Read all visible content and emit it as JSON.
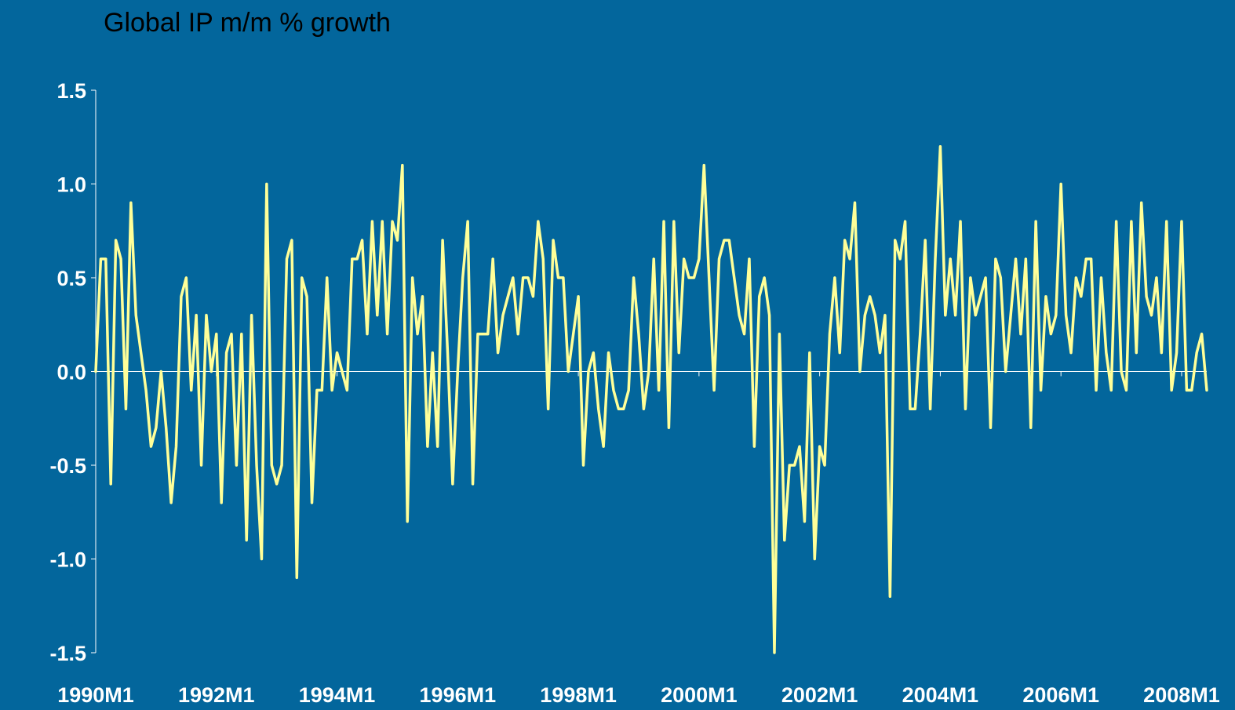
{
  "chart_data": {
    "type": "line",
    "title": "Global IP m/m % growth",
    "categories": [
      "1990M1",
      null,
      null,
      null,
      null,
      null,
      null,
      null,
      null,
      null,
      null,
      null,
      null,
      null,
      null,
      null,
      null,
      null,
      null,
      null,
      null,
      null,
      null,
      null,
      "1992M1",
      null,
      null,
      null,
      null,
      null,
      null,
      null,
      null,
      null,
      null,
      null,
      null,
      null,
      null,
      null,
      null,
      null,
      null,
      null,
      null,
      null,
      null,
      null,
      "1994M1",
      null,
      null,
      null,
      null,
      null,
      null,
      null,
      null,
      null,
      null,
      null,
      null,
      null,
      null,
      null,
      null,
      null,
      null,
      null,
      null,
      null,
      null,
      null,
      "1996M1",
      null,
      null,
      null,
      null,
      null,
      null,
      null,
      null,
      null,
      null,
      null,
      null,
      null,
      null,
      null,
      null,
      null,
      null,
      null,
      null,
      null,
      null,
      null,
      "1998M1",
      null,
      null,
      null,
      null,
      null,
      null,
      null,
      null,
      null,
      null,
      null,
      null,
      null,
      null,
      null,
      null,
      null,
      null,
      null,
      null,
      null,
      null,
      null,
      "2000M1",
      null,
      null,
      null,
      null,
      null,
      null,
      null,
      null,
      null,
      null,
      null,
      null,
      null,
      null,
      null,
      null,
      null,
      null,
      null,
      null,
      null,
      null,
      null,
      "2002M1",
      null,
      null,
      null,
      null,
      null,
      null,
      null,
      null,
      null,
      null,
      null,
      null,
      null,
      null,
      null,
      null,
      null,
      null,
      null,
      null,
      null,
      null,
      null,
      "2004M1",
      null,
      null,
      null,
      null,
      null,
      null,
      null,
      null,
      null,
      null,
      null,
      null,
      null,
      null,
      null,
      null,
      null,
      null,
      null,
      null,
      null,
      null,
      null,
      "2006M1",
      null,
      null,
      null,
      null,
      null,
      null,
      null,
      null,
      null,
      null,
      null,
      null,
      null,
      null,
      null,
      null,
      null,
      null,
      null,
      null,
      null,
      null,
      null,
      "2008M1",
      null,
      null,
      null,
      null,
      null
    ],
    "series": [
      {
        "color": "#ffff99",
        "values": [
          0.0,
          0.6,
          0.6,
          -0.6,
          0.7,
          0.6,
          -0.2,
          0.9,
          0.3,
          0.1,
          -0.1,
          -0.4,
          -0.3,
          0.0,
          -0.3,
          -0.7,
          -0.4,
          0.4,
          0.5,
          -0.1,
          0.3,
          -0.5,
          0.3,
          0.0,
          0.2,
          -0.7,
          0.1,
          0.2,
          -0.5,
          0.2,
          -0.9,
          0.3,
          -0.5,
          -1.0,
          1.0,
          -0.5,
          -0.6,
          -0.5,
          0.6,
          0.7,
          -1.1,
          0.5,
          0.4,
          -0.7,
          -0.1,
          -0.1,
          0.5,
          -0.1,
          0.1,
          0.0,
          -0.1,
          0.6,
          0.6,
          0.7,
          0.2,
          0.8,
          0.3,
          0.8,
          0.2,
          0.8,
          0.7,
          1.1,
          -0.8,
          0.5,
          0.2,
          0.4,
          -0.4,
          0.1,
          -0.4,
          0.7,
          0.1,
          -0.6,
          0.0,
          0.5,
          0.8,
          -0.6,
          0.2,
          0.2,
          0.2,
          0.6,
          0.1,
          0.3,
          0.4,
          0.5,
          0.2,
          0.5,
          0.5,
          0.4,
          0.8,
          0.6,
          -0.2,
          0.7,
          0.5,
          0.5,
          0.0,
          0.2,
          0.4,
          -0.5,
          0.0,
          0.1,
          -0.2,
          -0.4,
          0.1,
          -0.1,
          -0.2,
          -0.2,
          -0.1,
          0.5,
          0.2,
          -0.2,
          0.0,
          0.6,
          -0.1,
          0.8,
          -0.3,
          0.8,
          0.1,
          0.6,
          0.5,
          0.5,
          0.6,
          1.1,
          0.5,
          -0.1,
          0.6,
          0.7,
          0.7,
          0.5,
          0.3,
          0.2,
          0.6,
          -0.4,
          0.4,
          0.5,
          0.3,
          -1.5,
          0.2,
          -0.9,
          -0.5,
          -0.5,
          -0.4,
          -0.8,
          0.1,
          -1.0,
          -0.4,
          -0.5,
          0.2,
          0.5,
          0.1,
          0.7,
          0.6,
          0.9,
          0.0,
          0.3,
          0.4,
          0.3,
          0.1,
          0.3,
          -1.2,
          0.7,
          0.6,
          0.8,
          -0.2,
          -0.2,
          0.2,
          0.7,
          -0.2,
          0.6,
          1.2,
          0.3,
          0.6,
          0.3,
          0.8,
          -0.2,
          0.5,
          0.3,
          0.4,
          0.5,
          -0.3,
          0.6,
          0.5,
          0.0,
          0.3,
          0.6,
          0.2,
          0.6,
          -0.3,
          0.8,
          -0.1,
          0.4,
          0.2,
          0.3,
          1.0,
          0.3,
          0.1,
          0.5,
          0.4,
          0.6,
          0.6,
          -0.1,
          0.5,
          0.1,
          -0.1,
          0.8,
          0.0,
          -0.1,
          0.8,
          0.1,
          0.9,
          0.4,
          0.3,
          0.5,
          0.1,
          0.8,
          -0.1,
          0.1,
          0.8,
          -0.1,
          -0.1,
          0.1,
          0.2,
          -0.1
        ]
      }
    ],
    "ylim": [
      -1.5,
      1.5
    ],
    "yticks": [
      -1.5,
      {
        "value": -1,
        "label": "-1.0"
      },
      -0.5,
      {
        "value": 0,
        "label": "0.0"
      },
      0.5,
      {
        "value": 1,
        "label": "1.0"
      },
      1.5
    ]
  }
}
